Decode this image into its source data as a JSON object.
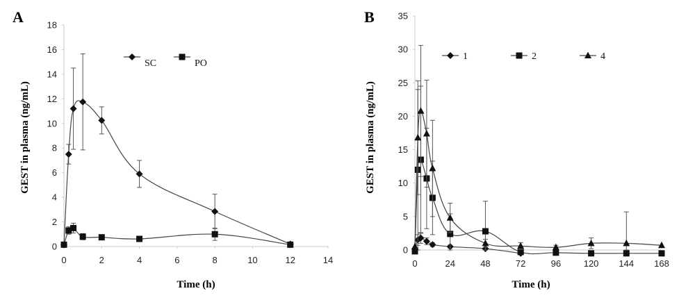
{
  "chart_data": [
    {
      "panel": "A",
      "type": "line",
      "xlabel": "Time (h)",
      "ylabel": "GEST in plasma (ng/mL)",
      "xlim": [
        0,
        14
      ],
      "ylim": [
        0,
        18
      ],
      "xticks": [
        "0",
        "2",
        "4",
        "6",
        "8",
        "10",
        "12",
        "14"
      ],
      "yticks": [
        "0",
        "2",
        "4",
        "6",
        "8",
        "10",
        "12",
        "14",
        "16",
        "18"
      ],
      "grid": false,
      "legend_position": "top-right",
      "series": [
        {
          "name": "SC",
          "marker": "diamond",
          "x": [
            0,
            0.25,
            0.5,
            1,
            2,
            4,
            8,
            12
          ],
          "y": [
            0.15,
            7.5,
            11.2,
            11.75,
            10.25,
            5.9,
            2.85,
            0.2
          ],
          "err": [
            0,
            0.8,
            3.3,
            3.9,
            1.1,
            1.1,
            1.4,
            0
          ]
        },
        {
          "name": "PO",
          "marker": "square",
          "x": [
            0,
            0.25,
            0.5,
            1,
            2,
            4,
            8,
            12
          ],
          "y": [
            0.15,
            1.3,
            1.5,
            0.8,
            0.75,
            0.62,
            1.0,
            0.15
          ],
          "err": [
            0,
            0.3,
            0.4,
            0.25,
            0.15,
            0.12,
            0.5,
            0
          ]
        }
      ]
    },
    {
      "panel": "B",
      "type": "line",
      "xlabel": "Time (h)",
      "ylabel": "GEST in plasma (ng/mL)",
      "xlim": [
        0,
        168
      ],
      "ylim": [
        0,
        35
      ],
      "xticks": [
        "0",
        "24",
        "48",
        "72",
        "96",
        "120",
        "144",
        "168"
      ],
      "yticks": [
        "0",
        "5",
        "10",
        "15",
        "20",
        "25",
        "30",
        "35"
      ],
      "grid": false,
      "legend_position": "top-right",
      "series": [
        {
          "name": "1",
          "marker": "diamond",
          "x": [
            0,
            2,
            4,
            8,
            12,
            24,
            48,
            72
          ],
          "y": [
            0.2,
            1.5,
            1.8,
            1.3,
            0.8,
            0.5,
            0.2,
            -0.5
          ],
          "err": [
            0,
            0.8,
            0.8,
            0.5,
            0.3,
            0.2,
            0.2,
            0
          ]
        },
        {
          "name": "2",
          "marker": "square",
          "x": [
            0,
            2,
            4,
            8,
            12,
            24,
            48,
            72,
            96,
            120,
            144,
            168
          ],
          "y": [
            -0.2,
            12.0,
            13.5,
            10.7,
            7.8,
            2.4,
            2.8,
            -0.3,
            -0.4,
            -0.5,
            -0.5,
            -0.5
          ],
          "err": [
            0,
            12.0,
            11.0,
            7.5,
            5.5,
            3.0,
            4.5,
            0,
            0,
            0,
            0,
            0
          ]
        },
        {
          "name": "4",
          "marker": "triangle",
          "x": [
            0,
            2,
            4,
            8,
            12,
            24,
            48,
            72,
            96,
            120,
            144,
            168
          ],
          "y": [
            0.5,
            16.8,
            20.8,
            17.4,
            12.2,
            4.8,
            1.0,
            0.6,
            0.4,
            1.0,
            1.0,
            0.7
          ],
          "err": [
            0,
            8.5,
            9.8,
            8.0,
            7.2,
            2.2,
            0.6,
            0.5,
            0.3,
            0.8,
            4.7,
            0
          ]
        }
      ]
    }
  ]
}
